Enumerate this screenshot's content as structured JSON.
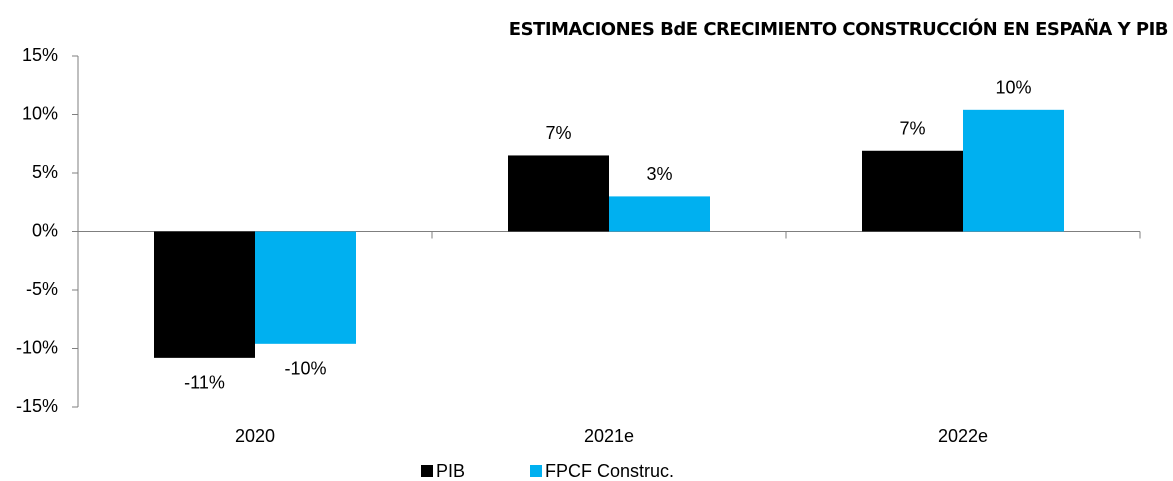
{
  "chart_data": {
    "type": "bar",
    "title": "ESTIMACIONES BdE CRECIMIENTO CONSTRUCCIÓN EN ESPAÑA Y PIB",
    "categories": [
      "2020",
      "2021e",
      "2022e"
    ],
    "series": [
      {
        "name": "PIB",
        "color": "#000000",
        "values": [
          -10.8,
          6.5,
          6.9
        ],
        "value_labels": [
          "-11%",
          "7%",
          "7%"
        ]
      },
      {
        "name": "FPCF Construc.",
        "color": "#00b0f0",
        "values": [
          -9.6,
          3.0,
          10.4
        ],
        "value_labels": [
          "-10%",
          "3%",
          "10%"
        ]
      }
    ],
    "ylim": [
      -15,
      15
    ],
    "yticks": [
      {
        "value": -15,
        "label": "-15%"
      },
      {
        "value": -10,
        "label": "-10%"
      },
      {
        "value": -5,
        "label": "-5%"
      },
      {
        "value": 0,
        "label": "0%"
      },
      {
        "value": 5,
        "label": "5%"
      },
      {
        "value": 10,
        "label": "10%"
      },
      {
        "value": 15,
        "label": "15%"
      }
    ],
    "grid": false,
    "legend": "bottom"
  }
}
